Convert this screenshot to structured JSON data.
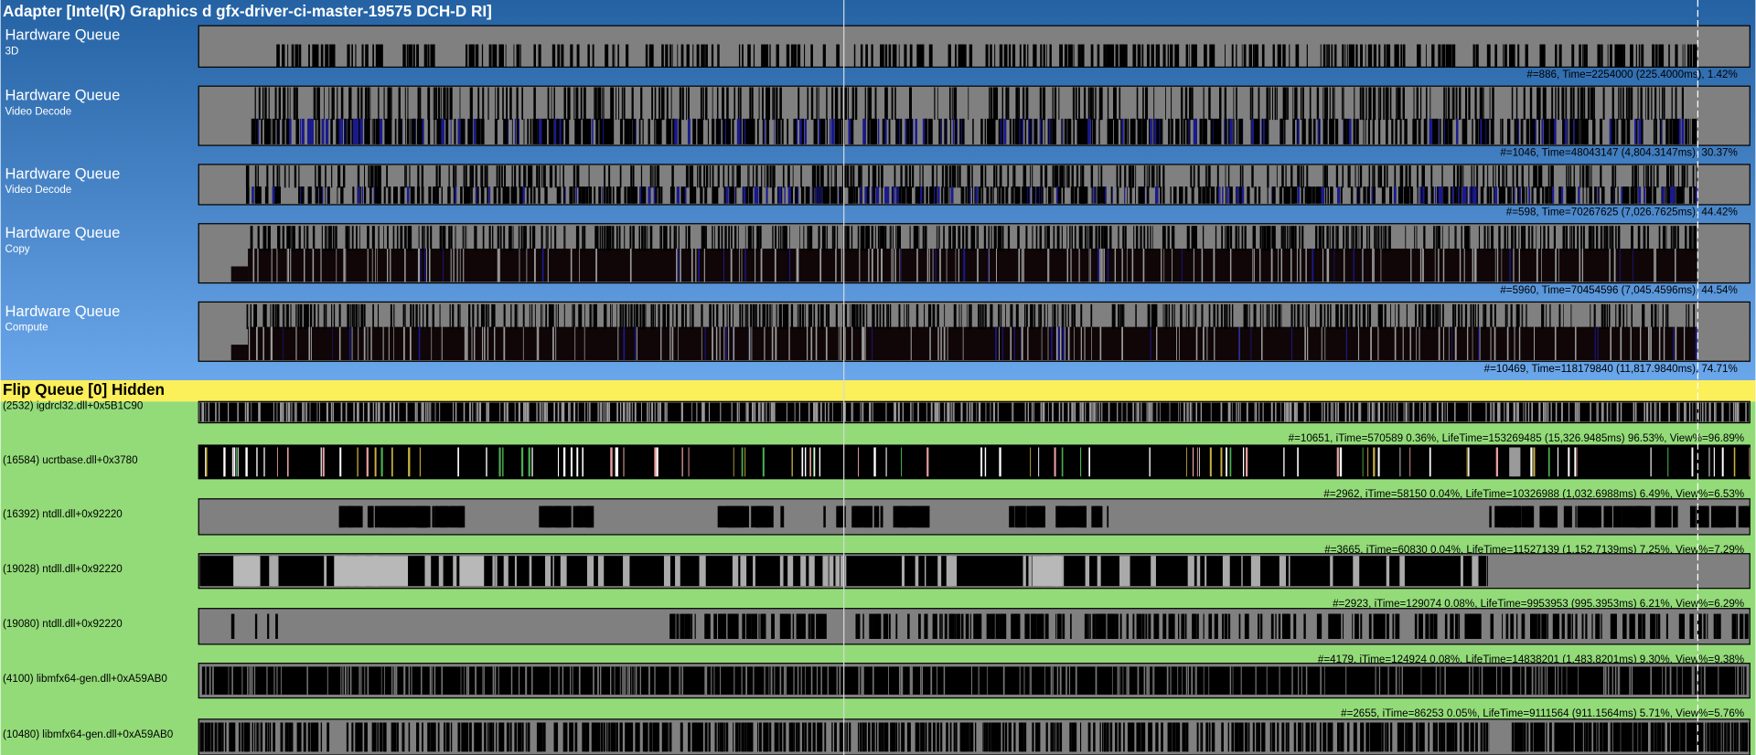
{
  "header": {
    "title": "Adapter [Intel(R) Graphics d gfx-driver-ci-master-19575 DCH-D RI]"
  },
  "queues": [
    {
      "name": "Hardware Queue",
      "engine": "3D",
      "stats": "#=886,  Time=2254000 (225.4000ms),  1.42%"
    },
    {
      "name": "Hardware Queue",
      "engine": "Video Decode",
      "stats": "#=1046,  Time=48043147 (4,804.3147ms),  30.37%"
    },
    {
      "name": "Hardware Queue",
      "engine": "Video Decode",
      "stats": "#=598,  Time=70267625 (7,026.7625ms),  44.42%"
    },
    {
      "name": "Hardware Queue",
      "engine": "Copy",
      "stats": "#=5960,  Time=70454596 (7,045.4596ms),  44.54%"
    },
    {
      "name": "Hardware Queue",
      "engine": "Compute",
      "stats": "#=10469,  Time=118179840 (11,817.9840ms),  74.71%"
    }
  ],
  "flip_queue": {
    "title": "Flip Queue [0] Hidden"
  },
  "threads": [
    {
      "label": "(2532) igdrcl32.dll+0x5B1C90",
      "stats": "#=10651,  iTime=570589  0.36%,  LifeTime=153269485 (15,326.9485ms)  96.53%,  View%=96.89%"
    },
    {
      "label": "(16584) ucrtbase.dll+0x3780",
      "stats": "#=2962,  iTime=58150  0.04%,  LifeTime=10326988 (1,032.6988ms)  6.49%,  View%=6.53%"
    },
    {
      "label": "(16392) ntdll.dll+0x92220",
      "stats": "#=3665,  iTime=60830  0.04%,  LifeTime=11527139 (1,152.7139ms)  7.25%,  View%=7.29%"
    },
    {
      "label": "(19028) ntdll.dll+0x92220",
      "stats": "#=2923,  iTime=129074  0.08%,  LifeTime=9953953 (995.3953ms)  6.21%,  View%=6.29%"
    },
    {
      "label": "(19080) ntdll.dll+0x92220",
      "stats": "#=4179,  iTime=124924  0.08%,  LifeTime=14838201 (1,483.8201ms)  9.30%,  View%=9.38%"
    },
    {
      "label": "(4100) libmfx64-gen.dll+0xA59AB0",
      "stats": "#=2655,  iTime=86253  0.05%,  LifeTime=9111564 (911.1564ms)  5.71%,  View%=5.76%"
    },
    {
      "label": "(10480) libmfx64-gen.dll+0xA59AB0"
    }
  ]
}
